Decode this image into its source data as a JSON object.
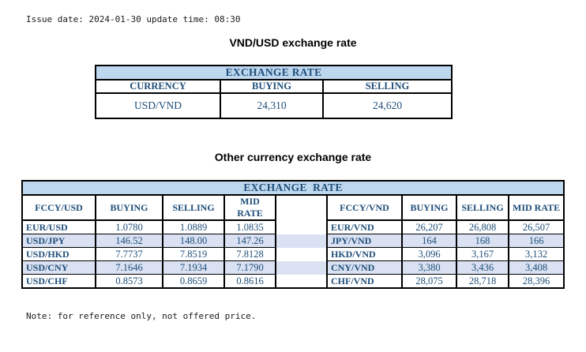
{
  "meta": {
    "issue_line": "Issue date: 2024-01-30 update time: 08:30",
    "note_line": "Note: for reference only, not offered price."
  },
  "colors": {
    "band_bg": "#BDD7EE",
    "stripe_bg": "#D9E1F2",
    "table_text": "#1F4E79",
    "border": "#000000",
    "title_text": "#000000"
  },
  "usd_table": {
    "title": "VND/USD exchange rate",
    "band": "EXCHANGE RATE",
    "headers": [
      "CURRENCY",
      "BUYING",
      "SELLING"
    ],
    "rows": [
      [
        "USD/VND",
        "24,310",
        "24,620"
      ]
    ]
  },
  "other_table": {
    "title": "Other currency exchange rate",
    "band": "EXCHANGE  RATE",
    "headers": [
      "FCCY/USD",
      "BUYING",
      "SELLING",
      "MID RATE",
      "",
      "FCCY/VND",
      "BUYING",
      "SELLING",
      "MID RATE"
    ],
    "rows": [
      [
        "EUR/USD",
        "1.0780",
        "1.0889",
        "1.0835",
        "",
        "EUR/VND",
        "26,207",
        "26,808",
        "26,507"
      ],
      [
        "USD/JPY",
        "146.52",
        "148.00",
        "147.26",
        "",
        "JPY/VND",
        "164",
        "168",
        "166"
      ],
      [
        "USD/HKD",
        "7.7737",
        "7.8519",
        "7.8128",
        "",
        "HKD/VND",
        "3,096",
        "3,167",
        "3,132"
      ],
      [
        "USD/CNY",
        "7.1646",
        "7.1934",
        "7.1790",
        "",
        "CNY/VND",
        "3,380",
        "3,436",
        "3,408"
      ],
      [
        "USD/CHF",
        "0.8573",
        "0.8659",
        "0.8616",
        "",
        "CHF/VND",
        "28,075",
        "28,718",
        "28,396"
      ]
    ]
  }
}
